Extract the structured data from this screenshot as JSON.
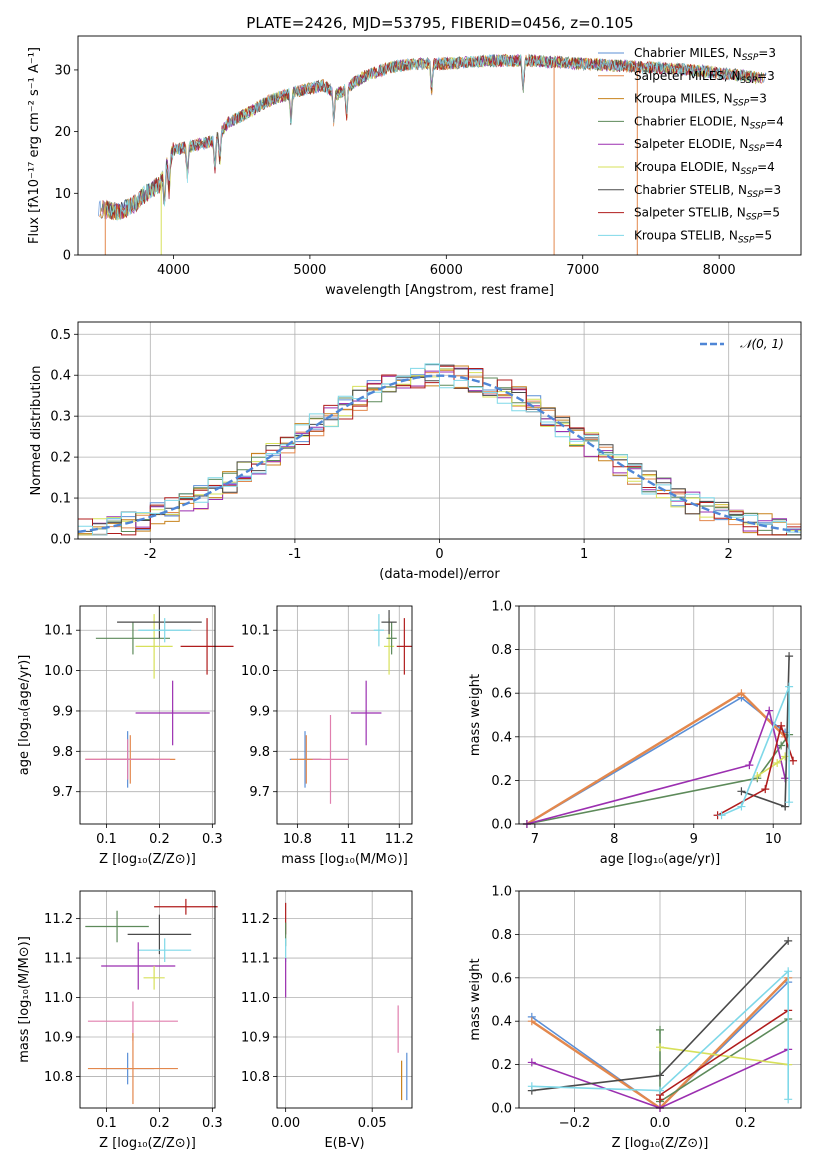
{
  "figure_title": "PLATE=2426, MJD=53795, FIBERID=0456, z=0.105",
  "colors": {
    "Chabrier MILES": "#5b8fd6",
    "Salpeter MILES": "#e3884d",
    "Kroupa MILES": "#c8821c",
    "Chabrier ELODIE": "#5d8a5a",
    "Salpeter ELODIE": "#9b2fb0",
    "Kroupa ELODIE": "#d7e05a",
    "Chabrier STELIB": "#4a4a4a",
    "Salpeter STELIB": "#b01c1c",
    "Kroupa STELIB": "#7fd8e8",
    "pink": "#e07fae",
    "normal_curve": "#4f86d6",
    "grid": "#b0b0b0"
  },
  "chart_data": [
    {
      "id": "spectrum",
      "type": "line",
      "title": "PLATE=2426, MJD=53795, FIBERID=0456, z=0.105",
      "xlabel": "wavelength [Angstrom, rest frame]",
      "ylabel": "Flux [fλ10⁻¹⁷ erg cm⁻² s⁻¹ A⁻¹]",
      "xlim": [
        3300,
        8600
      ],
      "ylim": [
        0,
        35.5
      ],
      "xticks": [
        4000,
        5000,
        6000,
        7000,
        8000
      ],
      "yticks": [
        0,
        10,
        20,
        30
      ],
      "grid": false,
      "legend_position": "right",
      "legend": [
        {
          "label": "Chabrier MILES, N",
          "sub": "SSP",
          "suffix": "=3"
        },
        {
          "label": "Salpeter MILES, N",
          "sub": "SSP",
          "suffix": "=3"
        },
        {
          "label": "Kroupa MILES, N",
          "sub": "SSP",
          "suffix": "=3"
        },
        {
          "label": "Chabrier ELODIE, N",
          "sub": "SSP",
          "suffix": "=4"
        },
        {
          "label": "Salpeter ELODIE, N",
          "sub": "SSP",
          "suffix": "=4"
        },
        {
          "label": "Kroupa ELODIE, N",
          "sub": "SSP",
          "suffix": "=4"
        },
        {
          "label": "Chabrier STELIB, N",
          "sub": "SSP",
          "suffix": "=3"
        },
        {
          "label": "Salpeter STELIB, N",
          "sub": "SSP",
          "suffix": "=5"
        },
        {
          "label": "Kroupa STELIB, N",
          "sub": "SSP",
          "suffix": "=5"
        }
      ],
      "continuum": {
        "x": [
          3450,
          3600,
          3700,
          3800,
          3900,
          4000,
          4100,
          4200,
          4300,
          4400,
          4500,
          4700,
          4900,
          5100,
          5200,
          5400,
          5600,
          5800,
          6000,
          6300,
          6600,
          7000,
          7400,
          7800,
          8200,
          8350
        ],
        "y": [
          7.5,
          7.0,
          8.0,
          10.0,
          11.5,
          17.0,
          17.5,
          18.0,
          18.5,
          21.5,
          22.5,
          25.0,
          26.5,
          27.5,
          26.0,
          29.0,
          30.5,
          31.0,
          31.0,
          31.5,
          31.5,
          31.0,
          30.5,
          30.0,
          29.0,
          28.5
        ]
      }
    },
    {
      "id": "residuals",
      "type": "line",
      "xlabel": "(data-model)/error",
      "ylabel": "Normed distribution",
      "xlim": [
        -2.5,
        2.5
      ],
      "ylim": [
        0,
        0.53
      ],
      "xticks": [
        -2,
        -1,
        0,
        1,
        2
      ],
      "yticks": [
        0.0,
        0.1,
        0.2,
        0.3,
        0.4,
        0.5
      ],
      "grid": true,
      "legend_position": "top-right",
      "legend": [
        "𝒩(0, 1)"
      ]
    },
    {
      "id": "age_vs_Z",
      "type": "scatter",
      "xlabel": "Z [log₁₀(Z/Z⊙)]",
      "ylabel": "age  [log₁₀(age/yr)]",
      "xlim": [
        0.05,
        0.305
      ],
      "ylim": [
        9.62,
        10.16
      ],
      "xticks": [
        0.1,
        0.2,
        0.3
      ],
      "yticks": [
        9.7,
        9.8,
        9.9,
        10.0,
        10.1
      ],
      "grid": true,
      "points": [
        {
          "series": "Chabrier MILES",
          "x": 0.14,
          "y": 9.78,
          "xerr": 0.05,
          "yerr": 0.07
        },
        {
          "series": "Salpeter MILES",
          "x": 0.145,
          "y": 9.78,
          "xerr": 0.085,
          "yerr": 0.06
        },
        {
          "series": "Salpeter ELODIE",
          "x": 0.225,
          "y": 9.895,
          "xerr": 0.07,
          "yerr": 0.08
        },
        {
          "series": "Kroupa ELODIE",
          "x": 0.19,
          "y": 10.06,
          "xerr": 0.035,
          "yerr": 0.08
        },
        {
          "series": "Chabrier ELODIE",
          "x": 0.15,
          "y": 10.08,
          "xerr": 0.07,
          "yerr": 0.04
        },
        {
          "series": "Chabrier STELIB",
          "x": 0.2,
          "y": 10.12,
          "xerr": 0.08,
          "yerr": 0.04
        },
        {
          "series": "Salpeter STELIB",
          "x": 0.29,
          "y": 10.06,
          "xerr": 0.05,
          "yerr": 0.07
        },
        {
          "series": "Kroupa STELIB",
          "x": 0.21,
          "y": 10.1,
          "xerr": 0.05,
          "yerr": 0.03
        },
        {
          "series": "pink",
          "x": 0.14,
          "y": 9.78,
          "xerr": 0.08,
          "yerr": 0.05
        }
      ]
    },
    {
      "id": "age_vs_mass",
      "type": "scatter",
      "xlabel": "mass [log₁₀(M/M⊙)]",
      "ylabel": "",
      "xlim": [
        10.72,
        11.25
      ],
      "ylim": [
        9.62,
        10.16
      ],
      "xticks": [
        10.8,
        11.0,
        11.2
      ],
      "yticks": [
        9.7,
        9.8,
        9.9,
        10.0,
        10.1
      ],
      "grid": true,
      "points": [
        {
          "series": "Chabrier MILES",
          "x": 10.83,
          "y": 9.78,
          "xerr": 0.06,
          "yerr": 0.07
        },
        {
          "series": "Salpeter MILES",
          "x": 10.835,
          "y": 9.78,
          "xerr": 0.06,
          "yerr": 0.06
        },
        {
          "series": "pink",
          "x": 10.93,
          "y": 9.78,
          "xerr": 0.07,
          "yerr": 0.11
        },
        {
          "series": "Salpeter ELODIE",
          "x": 11.07,
          "y": 9.895,
          "xerr": 0.06,
          "yerr": 0.08
        },
        {
          "series": "Kroupa ELODIE",
          "x": 11.16,
          "y": 10.06,
          "xerr": 0.02,
          "yerr": 0.07
        },
        {
          "series": "Chabrier ELODIE",
          "x": 11.17,
          "y": 10.08,
          "xerr": 0.02,
          "yerr": 0.04
        },
        {
          "series": "Chabrier STELIB",
          "x": 11.16,
          "y": 10.12,
          "xerr": 0.03,
          "yerr": 0.03
        },
        {
          "series": "Salpeter STELIB",
          "x": 11.22,
          "y": 10.06,
          "xerr": 0.03,
          "yerr": 0.07
        },
        {
          "series": "Kroupa STELIB",
          "x": 11.12,
          "y": 10.1,
          "xerr": 0.02,
          "yerr": 0.04
        }
      ]
    },
    {
      "id": "massweight_vs_age",
      "type": "line",
      "xlabel": "age  [log₁₀(age/yr)]",
      "ylabel": "mass weight",
      "xlim": [
        6.8,
        10.35
      ],
      "ylim": [
        0,
        1.0
      ],
      "xticks": [
        7,
        8,
        9,
        10
      ],
      "yticks": [
        0.0,
        0.2,
        0.4,
        0.6,
        0.8,
        1.0
      ],
      "grid": true,
      "series": [
        {
          "name": "Chabrier MILES",
          "x": [
            6.9,
            9.6,
            10.15
          ],
          "y": [
            0.0,
            0.58,
            0.42
          ]
        },
        {
          "name": "Salpeter MILES",
          "x": [
            6.9,
            9.6,
            10.15
          ],
          "y": [
            0.0,
            0.6,
            0.4
          ]
        },
        {
          "name": "Chabrier ELODIE",
          "x": [
            6.9,
            9.8,
            10.1,
            10.2
          ],
          "y": [
            0.0,
            0.21,
            0.36,
            0.41
          ]
        },
        {
          "name": "Salpeter ELODIE",
          "x": [
            6.9,
            9.7,
            9.95,
            10.15
          ],
          "y": [
            0.0,
            0.27,
            0.52,
            0.21
          ]
        },
        {
          "name": "Kroupa ELODIE",
          "x": [
            9.8,
            10.05,
            10.15
          ],
          "y": [
            0.22,
            0.28,
            0.31
          ]
        },
        {
          "name": "Chabrier STELIB",
          "x": [
            9.6,
            10.15,
            10.2,
            10.15
          ],
          "y": [
            0.15,
            0.08,
            0.77,
            0.08
          ]
        },
        {
          "name": "Salpeter STELIB",
          "x": [
            9.3,
            9.9,
            10.1,
            10.25
          ],
          "y": [
            0.04,
            0.16,
            0.45,
            0.29
          ]
        },
        {
          "name": "Kroupa STELIB",
          "x": [
            9.35,
            9.6,
            10.2,
            10.2
          ],
          "y": [
            0.04,
            0.08,
            0.63,
            0.1
          ]
        }
      ]
    },
    {
      "id": "mass_vs_Z",
      "type": "scatter",
      "xlabel": "Z [log₁₀(Z/Z⊙)]",
      "ylabel": "mass [log₁₀(M/M⊙)]",
      "xlim": [
        0.05,
        0.305
      ],
      "ylim": [
        10.72,
        11.27
      ],
      "xticks": [
        0.1,
        0.2,
        0.3
      ],
      "yticks": [
        10.8,
        10.9,
        11.0,
        11.1,
        11.2
      ],
      "grid": true,
      "points": [
        {
          "series": "Salpeter STELIB",
          "x": 0.25,
          "y": 11.23,
          "xerr": 0.06,
          "yerr": 0.02
        },
        {
          "series": "Chabrier ELODIE",
          "x": 0.12,
          "y": 11.18,
          "xerr": 0.06,
          "yerr": 0.04
        },
        {
          "series": "Chabrier STELIB",
          "x": 0.2,
          "y": 11.16,
          "xerr": 0.06,
          "yerr": 0.05
        },
        {
          "series": "Kroupa STELIB",
          "x": 0.21,
          "y": 11.12,
          "xerr": 0.05,
          "yerr": 0.03
        },
        {
          "series": "Salpeter ELODIE",
          "x": 0.16,
          "y": 11.08,
          "xerr": 0.07,
          "yerr": 0.06
        },
        {
          "series": "Kroupa ELODIE",
          "x": 0.19,
          "y": 11.05,
          "xerr": 0.02,
          "yerr": 0.03
        },
        {
          "series": "pink",
          "x": 0.15,
          "y": 10.94,
          "xerr": 0.085,
          "yerr": 0.05
        },
        {
          "series": "Chabrier MILES",
          "x": 0.14,
          "y": 10.82,
          "xerr": 0.05,
          "yerr": 0.04
        },
        {
          "series": "Salpeter MILES",
          "x": 0.15,
          "y": 10.82,
          "xerr": 0.085,
          "yerr": 0.09
        }
      ]
    },
    {
      "id": "mass_vs_EBV",
      "type": "scatter",
      "xlabel": "E(B-V)",
      "ylabel": "",
      "xlim": [
        -0.005,
        0.073
      ],
      "ylim": [
        10.72,
        11.27
      ],
      "xticks": [
        0.0,
        0.05
      ],
      "xtick_labels": [
        "0.00",
        "0.05"
      ],
      "yticks": [
        10.8,
        10.9,
        11.0,
        11.1,
        11.2
      ],
      "grid": true,
      "points": [
        {
          "series": "Salpeter STELIB",
          "x": 0.0,
          "y": 11.2,
          "xerr": 0.0,
          "yerr": 0.04
        },
        {
          "series": "Chabrier ELODIE",
          "x": 0.0,
          "y": 11.16,
          "xerr": 0.0,
          "yerr": 0.03
        },
        {
          "series": "Kroupa STELIB",
          "x": 0.0,
          "y": 11.12,
          "xerr": 0.0,
          "yerr": 0.03
        },
        {
          "series": "Salpeter ELODIE",
          "x": 0.0,
          "y": 11.05,
          "xerr": 0.0,
          "yerr": 0.05
        },
        {
          "series": "pink",
          "x": 0.065,
          "y": 10.92,
          "xerr": 0.0,
          "yerr": 0.06
        },
        {
          "series": "Kroupa MILES",
          "x": 0.067,
          "y": 10.79,
          "xerr": 0.0,
          "yerr": 0.05
        },
        {
          "series": "Chabrier MILES",
          "x": 0.07,
          "y": 10.8,
          "xerr": 0.0,
          "yerr": 0.06
        }
      ]
    },
    {
      "id": "massweight_vs_Z",
      "type": "line",
      "xlabel": "Z [log₁₀(Z/Z⊙)]",
      "ylabel": "mass weight",
      "xlim": [
        -0.33,
        0.33
      ],
      "ylim": [
        0,
        1.0
      ],
      "xticks": [
        -0.2,
        0.0,
        0.2
      ],
      "xtick_labels": [
        "−0.2",
        "0.0",
        "0.2"
      ],
      "yticks": [
        0.0,
        0.2,
        0.4,
        0.6,
        0.8,
        1.0
      ],
      "grid": true,
      "series": [
        {
          "name": "Chabrier MILES",
          "x": [
            -0.3,
            0.0,
            0.3
          ],
          "y": [
            0.42,
            0.0,
            0.58
          ]
        },
        {
          "name": "Salpeter MILES",
          "x": [
            -0.3,
            0.0,
            0.3
          ],
          "y": [
            0.4,
            0.0,
            0.6
          ]
        },
        {
          "name": "Chabrier ELODIE",
          "x": [
            0.0,
            0.0,
            0.3
          ],
          "y": [
            0.36,
            0.03,
            0.41
          ]
        },
        {
          "name": "Salpeter ELODIE",
          "x": [
            -0.3,
            0.0,
            0.3
          ],
          "y": [
            0.21,
            0.0,
            0.27
          ]
        },
        {
          "name": "Kroupa ELODIE",
          "x": [
            0.0,
            0.3
          ],
          "y": [
            0.28,
            0.2
          ]
        },
        {
          "name": "Chabrier STELIB",
          "x": [
            -0.3,
            0.0,
            0.3
          ],
          "y": [
            0.08,
            0.15,
            0.77
          ]
        },
        {
          "name": "Salpeter STELIB",
          "x": [
            0.0,
            0.0,
            0.3
          ],
          "y": [
            0.04,
            0.06,
            0.45
          ]
        },
        {
          "name": "Kroupa STELIB",
          "x": [
            -0.3,
            0.0,
            0.3,
            0.3
          ],
          "y": [
            0.1,
            0.08,
            0.63,
            0.04
          ]
        }
      ]
    }
  ]
}
